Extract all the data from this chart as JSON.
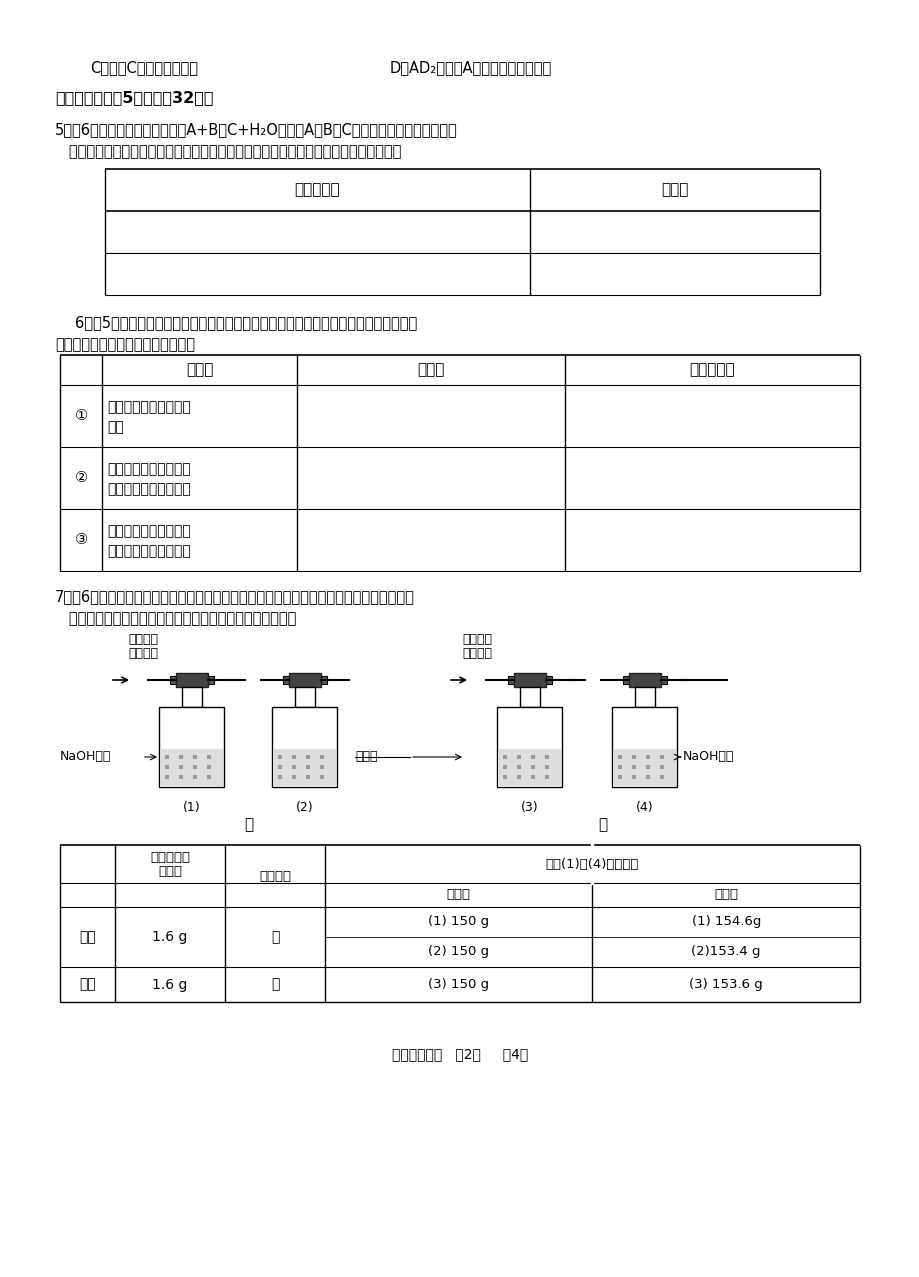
{
  "bg_color": "#ffffff",
  "text_color": "#000000",
  "page_width": 9.2,
  "page_height": 12.77,
  "line1_c": "C．物质C是反应的催化剂",
  "line1_d": "D．AD₂物质中A的化合价一定为正价",
  "section2_title": "二、非选择题（5小题，共32分）",
  "q5_text1": "5．（6分）化学反应可表示为：A+B－C+H₂O（其中A、B、C可以是化合物或单质），请",
  "q5_text2": "   你在下列表格里写出两个不同反应类型的具体化学方程式，并说明该反应的一种用途。",
  "table1_headers": [
    "化学方程式",
    "用　途"
  ],
  "q6_text1": "6．（5分）生活中的一些现象可用我们所学的化学知识加以解释。试解释下列现象，有",
  "q6_text2": "化学反应的要写出有关化学方程式。",
  "table2_col_headers": [
    "",
    "现　象",
    "解　释",
    "化学方程式"
  ],
  "table2_rows": [
    [
      "①",
      "一壶水烧开后，壶盖被\n顶开",
      "",
      ""
    ],
    [
      "②",
      "农民利用温室生产蔬菜\n时，在温室里燃烧木炭",
      "",
      ""
    ],
    [
      "③",
      "炒菜时油锅中的油不慎\n着火，盖上锅盖可灭火",
      "",
      ""
    ]
  ],
  "q7_text1": "7．（6分）某有机物在氧气中充分燃烧后，产物只有二氧化碳和水，甲、乙两组同学分别用",
  "q7_text2": "   下图两种方法测定它的组成。请你分析，并参与测定工作；",
  "table3_row1_label": "甲组",
  "table3_row1_mass": "1.6 g",
  "table3_row1_device": "甲",
  "table3_row1_before": [
    "(1) 150 g",
    "(2) 150 g"
  ],
  "table3_row1_after": [
    "(1) 154.6g",
    "(2)153.4 g"
  ],
  "table3_row2_label": "乙组",
  "table3_row2_mass": "1.6 g",
  "table3_row2_device": "乙",
  "table3_row2_before": [
    "(3) 150 g"
  ],
  "table3_row2_after": [
    "(3) 153.6 g"
  ],
  "footer": "化学竞赛试卷   第2页     共4页"
}
